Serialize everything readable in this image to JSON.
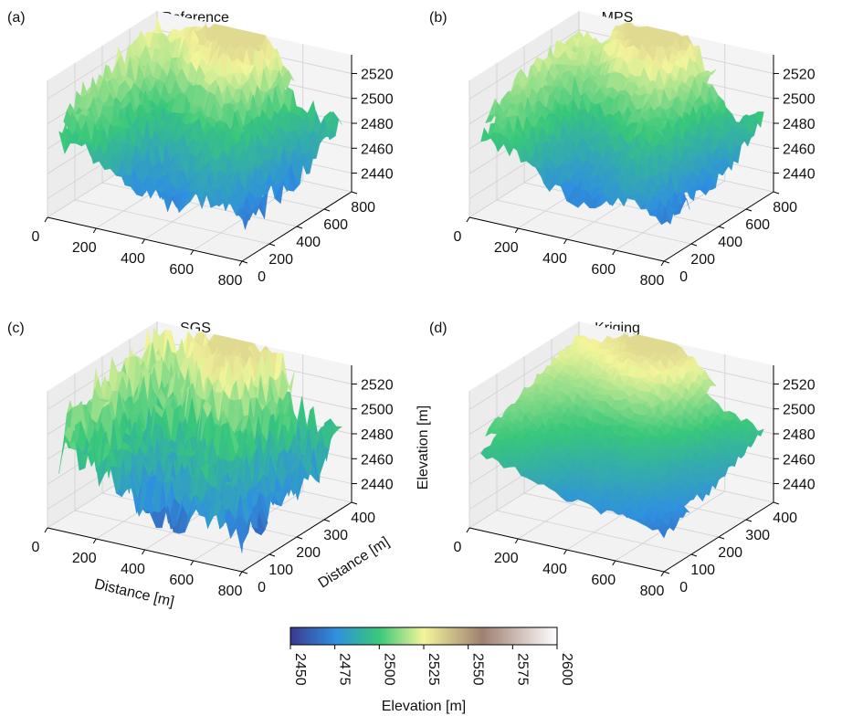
{
  "chart_data": [
    {
      "type": "surface3d",
      "panel_label": "(a)",
      "title": "Reference",
      "x_ticks": [
        0,
        200,
        400,
        600,
        800
      ],
      "y_ticks": [
        0,
        200,
        400,
        600,
        800
      ],
      "z_ticks": [
        2440,
        2460,
        2480,
        2500,
        2520
      ],
      "xlabel": "",
      "ylabel": "",
      "zlabel": "",
      "style": "reference",
      "grid": true
    },
    {
      "type": "surface3d",
      "panel_label": "(b)",
      "title": "MPS",
      "x_ticks": [
        0,
        200,
        400,
        600,
        800
      ],
      "y_ticks": [
        0,
        200,
        400,
        600,
        800
      ],
      "z_ticks": [
        2440,
        2460,
        2480,
        2500,
        2520
      ],
      "xlabel": "",
      "ylabel": "",
      "zlabel": "",
      "style": "mps",
      "grid": true
    },
    {
      "type": "surface3d",
      "panel_label": "(c)",
      "title": "SGS",
      "x_ticks": [
        0,
        200,
        400,
        600,
        800
      ],
      "y_ticks": [
        0,
        100,
        200,
        300,
        400
      ],
      "z_ticks": [
        2440,
        2460,
        2480,
        2500,
        2520
      ],
      "xlabel": "Distance [m]",
      "ylabel": "Distance [m]",
      "zlabel": "Elevation [m]",
      "style": "sgs",
      "grid": true
    },
    {
      "type": "surface3d",
      "panel_label": "(d)",
      "title": "Kriging",
      "x_ticks": [
        0,
        200,
        400,
        600,
        800
      ],
      "y_ticks": [
        0,
        100,
        200,
        300,
        400
      ],
      "z_ticks": [
        2440,
        2460,
        2480,
        2500,
        2520
      ],
      "xlabel": "",
      "ylabel": "",
      "zlabel": "",
      "style": "kriging",
      "grid": true
    }
  ],
  "colorbar": {
    "label": "Elevation [m]",
    "ticks": [
      2450,
      2475,
      2500,
      2525,
      2550,
      2575,
      2600
    ],
    "range": [
      2450,
      2600
    ],
    "colormap": "terrain_custom",
    "stops": [
      "#3b3a8e",
      "#2f8fe0",
      "#38c77a",
      "#f3f59a",
      "#a07f72",
      "#ffffff"
    ]
  }
}
